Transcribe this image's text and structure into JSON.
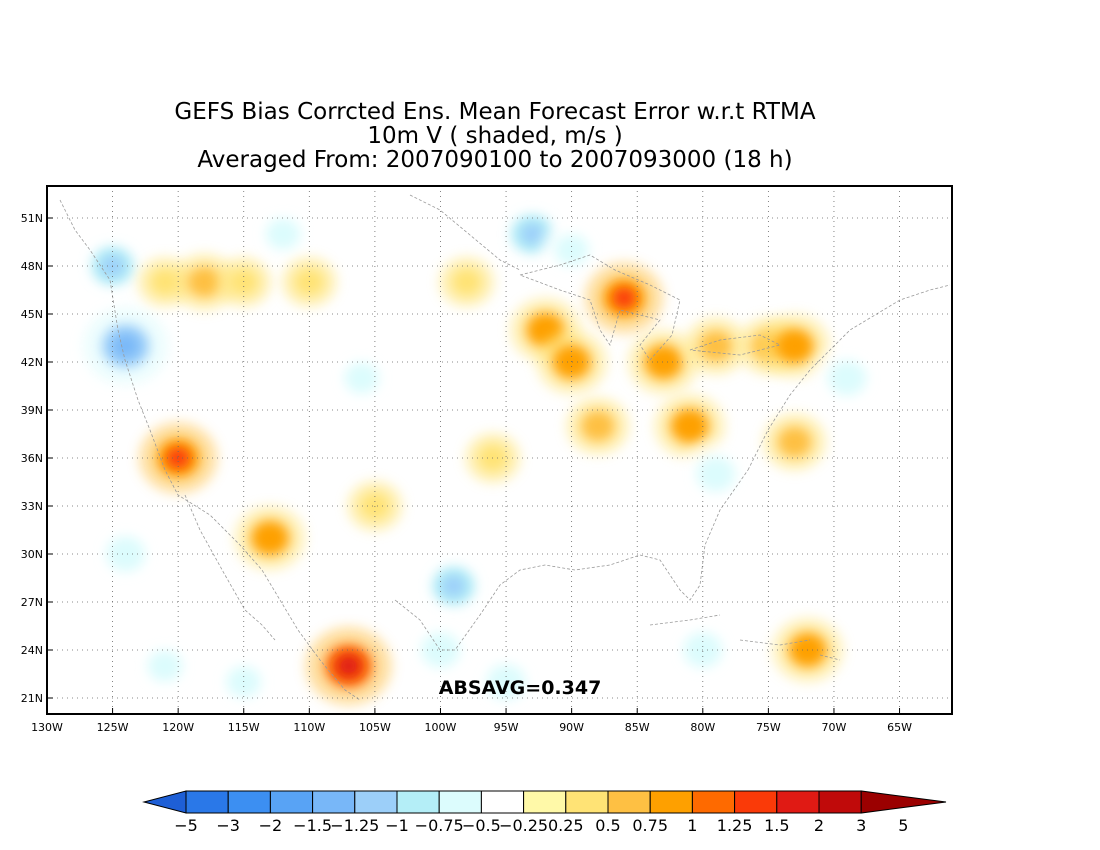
{
  "title": {
    "line1": "GEFS Bias Corrcted Ens. Mean Forecast Error w.r.t RTMA",
    "line2": "10m V ( shaded, m/s )",
    "line3": "Averaged From: 2007090100 to 2007093000 (18 h)"
  },
  "annotation": {
    "absavg": "ABSAVG=0.347"
  },
  "map": {
    "lon_range": [
      -130,
      -61
    ],
    "lat_range": [
      20,
      53
    ],
    "lat_ticks": [
      {
        "value": 51,
        "label": "51N"
      },
      {
        "value": 48,
        "label": "48N"
      },
      {
        "value": 45,
        "label": "45N"
      },
      {
        "value": 42,
        "label": "42N"
      },
      {
        "value": 39,
        "label": "39N"
      },
      {
        "value": 36,
        "label": "36N"
      },
      {
        "value": 33,
        "label": "33N"
      },
      {
        "value": 30,
        "label": "30N"
      },
      {
        "value": 27,
        "label": "27N"
      },
      {
        "value": 24,
        "label": "24N"
      },
      {
        "value": 21,
        "label": "21N"
      }
    ],
    "lon_ticks": [
      {
        "value": -130,
        "label": "130W"
      },
      {
        "value": -125,
        "label": "125W"
      },
      {
        "value": -120,
        "label": "120W"
      },
      {
        "value": -115,
        "label": "115W"
      },
      {
        "value": -110,
        "label": "110W"
      },
      {
        "value": -105,
        "label": "105W"
      },
      {
        "value": -100,
        "label": "100W"
      },
      {
        "value": -95,
        "label": "95W"
      },
      {
        "value": -90,
        "label": "90W"
      },
      {
        "value": -85,
        "label": "85W"
      },
      {
        "value": -80,
        "label": "80W"
      },
      {
        "value": -75,
        "label": "75W"
      },
      {
        "value": -70,
        "label": "70W"
      },
      {
        "value": -65,
        "label": "65W"
      }
    ],
    "grid": true,
    "blobs": [
      {
        "lon": -125,
        "lat": 48,
        "v": -1.25
      },
      {
        "lon": -124,
        "lat": 43,
        "v": -1.5
      },
      {
        "lon": -121,
        "lat": 47,
        "v": 0.5
      },
      {
        "lon": -118,
        "lat": 47,
        "v": 0.75
      },
      {
        "lon": -115,
        "lat": 47,
        "v": 0.5
      },
      {
        "lon": -112,
        "lat": 50,
        "v": -0.75
      },
      {
        "lon": -110,
        "lat": 47,
        "v": 0.5
      },
      {
        "lon": -98,
        "lat": 47,
        "v": 0.5
      },
      {
        "lon": -93,
        "lat": 50,
        "v": -1.25
      },
      {
        "lon": -90,
        "lat": 49,
        "v": -0.75
      },
      {
        "lon": -92,
        "lat": 44,
        "v": 1.0
      },
      {
        "lon": -90,
        "lat": 42,
        "v": 1.0
      },
      {
        "lon": -86,
        "lat": 46,
        "v": 1.25
      },
      {
        "lon": -83,
        "lat": 42,
        "v": 1.0
      },
      {
        "lon": -79,
        "lat": 43,
        "v": 0.75
      },
      {
        "lon": -75,
        "lat": 43,
        "v": 0.75
      },
      {
        "lon": -73,
        "lat": 43,
        "v": 1.0
      },
      {
        "lon": -69,
        "lat": 41,
        "v": -1.0
      },
      {
        "lon": -120,
        "lat": 36,
        "v": 1.25
      },
      {
        "lon": -113,
        "lat": 31,
        "v": 1.0
      },
      {
        "lon": -107,
        "lat": 23,
        "v": 1.5
      },
      {
        "lon": -105,
        "lat": 33,
        "v": 0.5
      },
      {
        "lon": -99,
        "lat": 28,
        "v": -1.25
      },
      {
        "lon": -100,
        "lat": 24,
        "v": -1.0
      },
      {
        "lon": -95,
        "lat": 22,
        "v": -1.0
      },
      {
        "lon": -88,
        "lat": 38,
        "v": 0.75
      },
      {
        "lon": -81,
        "lat": 38,
        "v": 1.0
      },
      {
        "lon": -79,
        "lat": 35,
        "v": -1.0
      },
      {
        "lon": -72,
        "lat": 24,
        "v": 1.0
      },
      {
        "lon": -80,
        "lat": 24,
        "v": -1.0
      },
      {
        "lon": -124,
        "lat": 30,
        "v": -1.0
      },
      {
        "lon": -121,
        "lat": 23,
        "v": -0.75
      },
      {
        "lon": -115,
        "lat": 22,
        "v": -0.75
      },
      {
        "lon": -96,
        "lat": 36,
        "v": 0.5
      },
      {
        "lon": -73,
        "lat": 37,
        "v": 0.75
      },
      {
        "lon": -106,
        "lat": 41,
        "v": -0.75
      }
    ]
  },
  "colorbar": {
    "colors": [
      "#1e5fd6",
      "#2a78e8",
      "#3c8ff2",
      "#58a3f5",
      "#78b7f8",
      "#9ccff9",
      "#b4eef7",
      "#dcfcfd",
      "#ffffff",
      "#fff9a8",
      "#ffe375",
      "#fec043",
      "#fea000",
      "#fe6a00",
      "#fa3a08",
      "#e01a14",
      "#c00a0a",
      "#9b0000"
    ],
    "labels": [
      "−5",
      "−3",
      "−2",
      "−1.5",
      "−1.25",
      "−1",
      "−0.75",
      "−0.5",
      "−0.25",
      "0.25",
      "0.5",
      "0.75",
      "1",
      "1.25",
      "1.5",
      "2",
      "3",
      "5"
    ]
  }
}
